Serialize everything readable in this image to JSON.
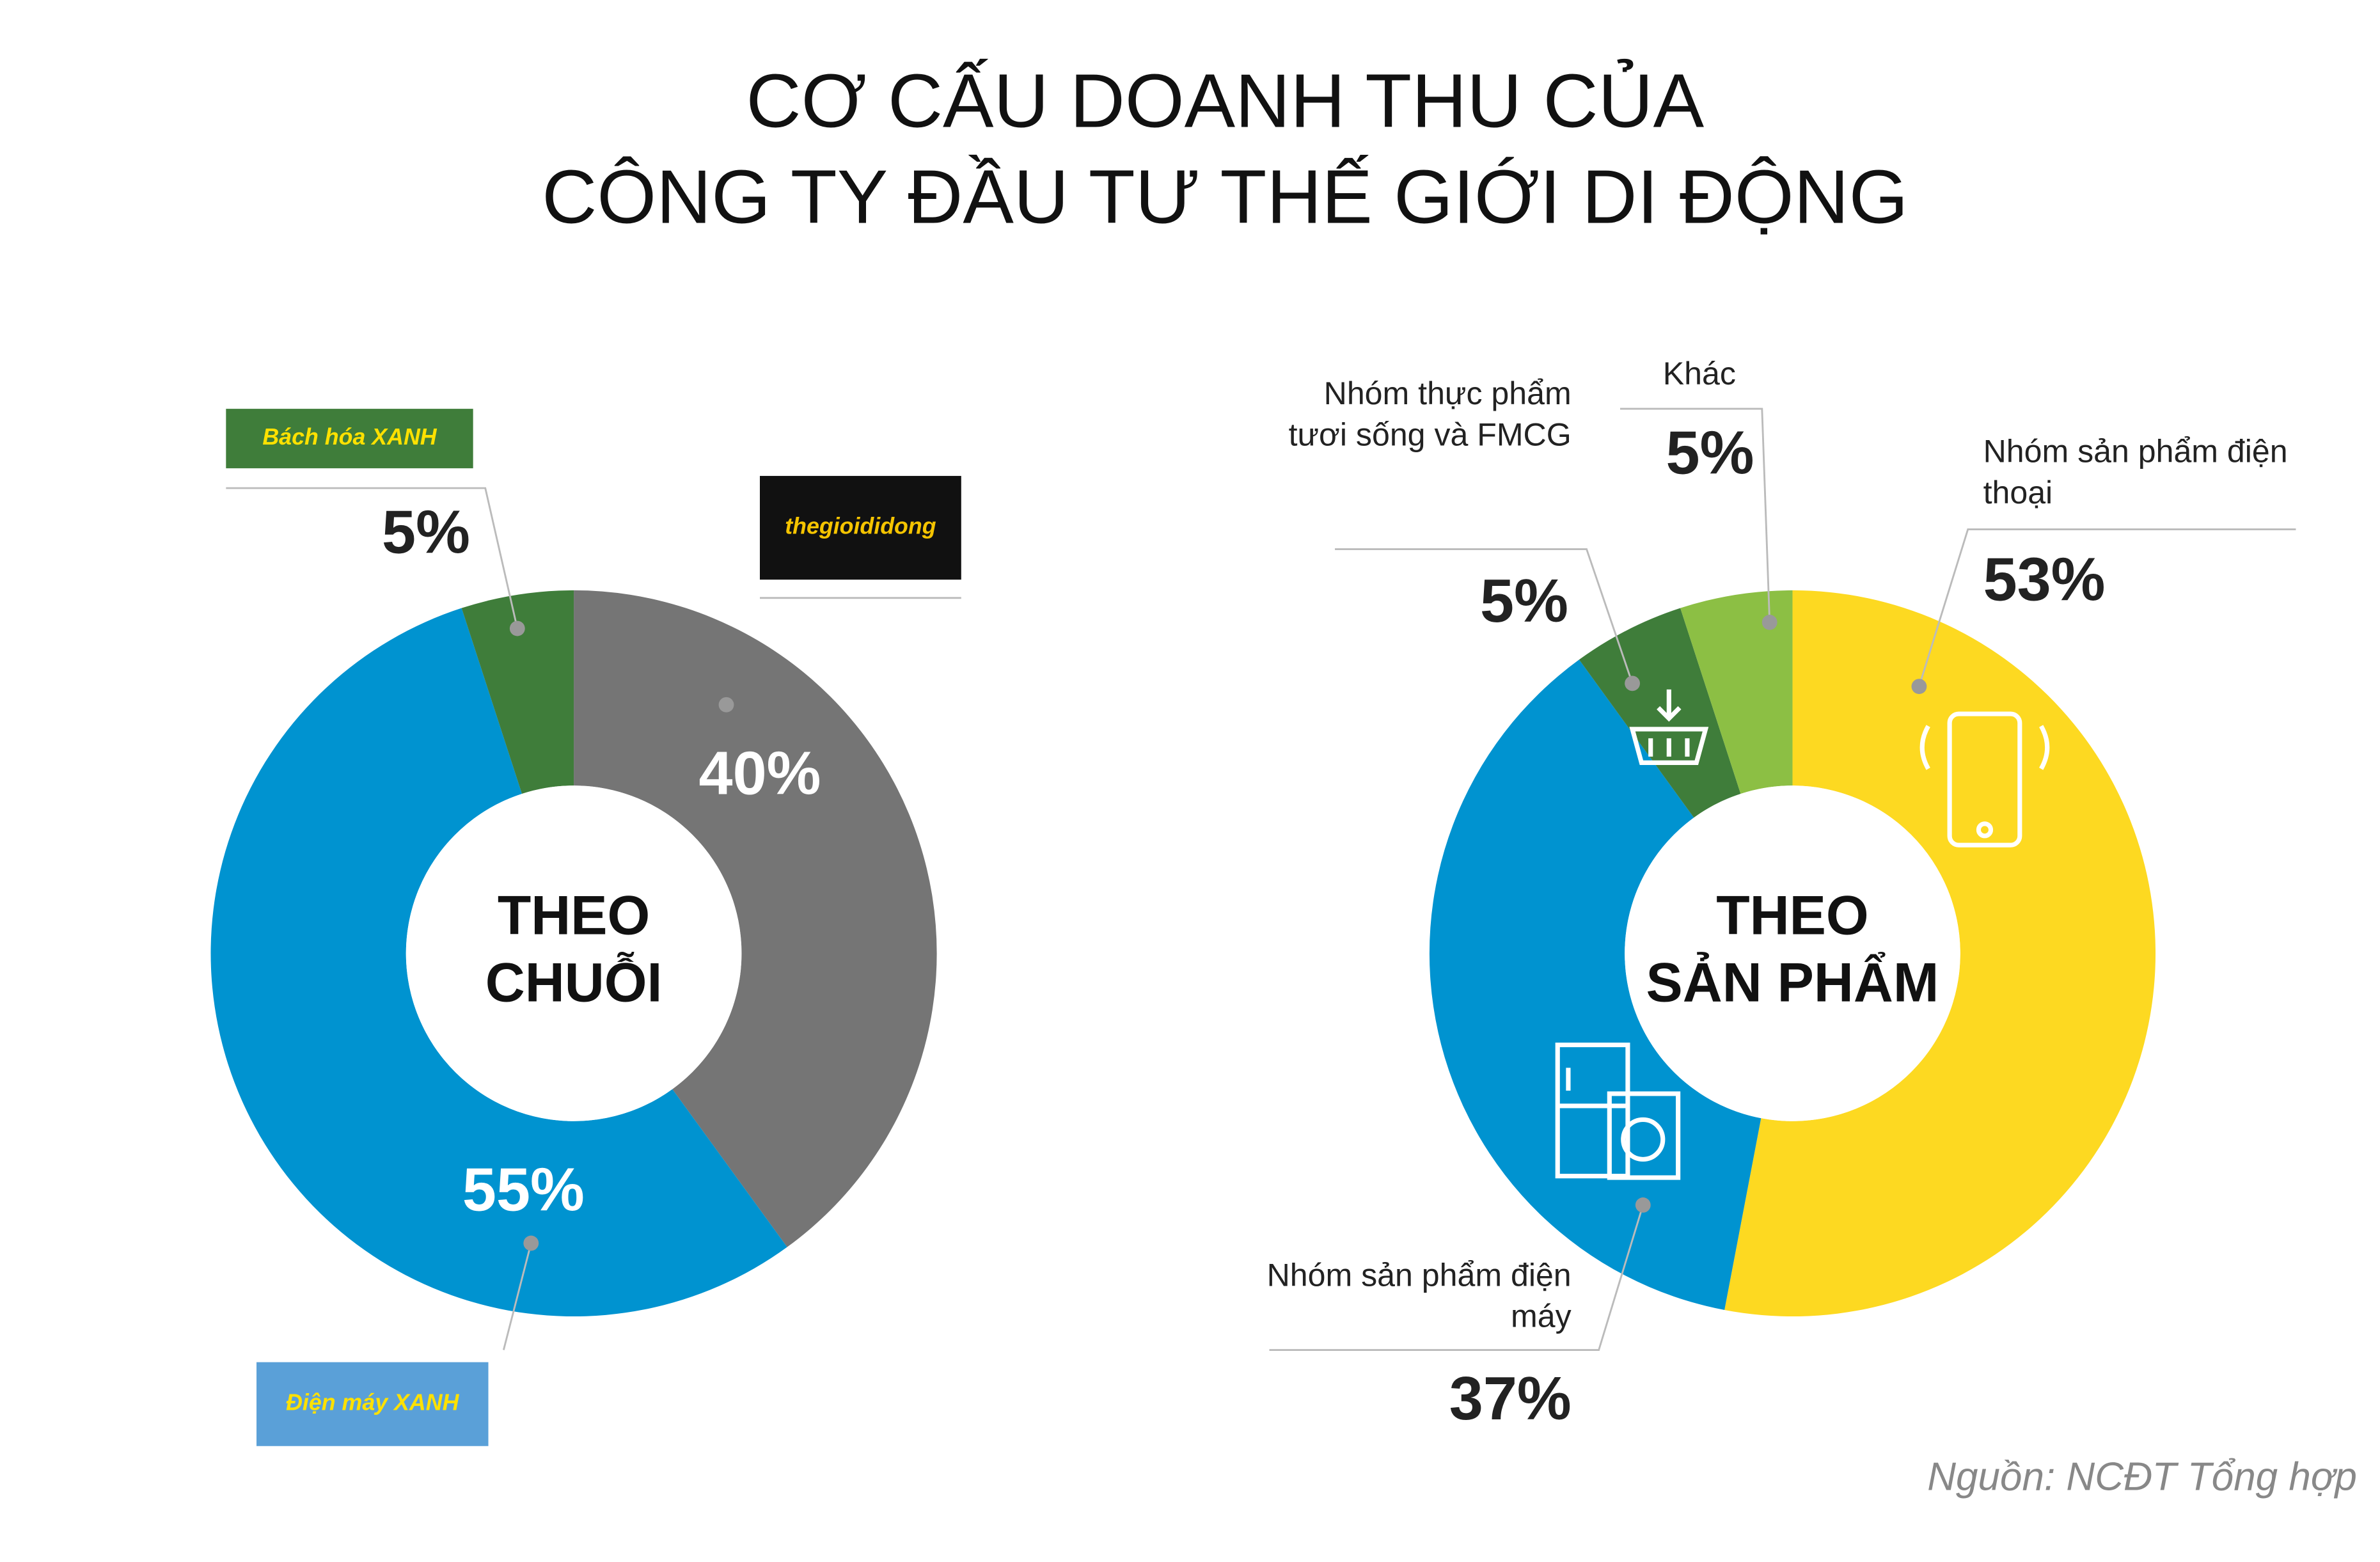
{
  "title": [
    "CƠ CẤU DOANH THU CỦA",
    "CÔNG TY ĐẦU TƯ THẾ GIỚI DI ĐỘNG"
  ],
  "source": "Nguồn: NCĐT Tổng hợp",
  "chart_data": [
    {
      "type": "donut",
      "center_label": [
        "THEO",
        "CHUỖI"
      ],
      "categories": [
        "thegioididong",
        "Điện máy XANH",
        "Bách hóa XANH"
      ],
      "values": [
        40,
        55,
        5
      ],
      "value_labels": [
        "40%",
        "55%",
        "5%"
      ],
      "colors": [
        "#757575",
        "#0093d0",
        "#3f7d3a"
      ]
    },
    {
      "type": "donut",
      "center_label": [
        "THEO",
        "SẢN PHẨM"
      ],
      "categories": [
        "Nhóm sản phẩm điện thoại",
        "Nhóm sản phẩm điện máy",
        "Nhóm thực phẩm tươi sống và FMCG",
        "Khác"
      ],
      "values": [
        53,
        37,
        5,
        5
      ],
      "value_labels": [
        "53%",
        "37%",
        "5%",
        "5%"
      ],
      "colors": [
        "#fdd921",
        "#0093d0",
        "#3f7d3a",
        "#8cbf44"
      ]
    }
  ]
}
